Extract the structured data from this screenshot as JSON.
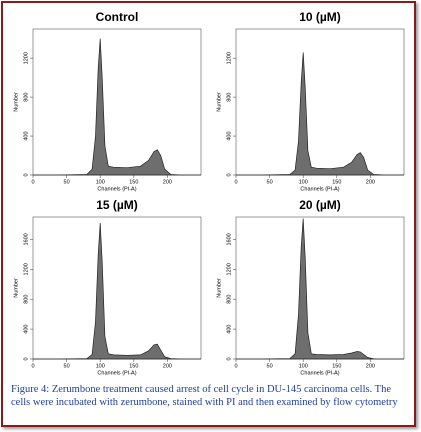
{
  "chart_data": [
    {
      "type": "area",
      "title": "Control",
      "xlabel": "Channels (PI-A)",
      "ylabel": "Number",
      "x": [
        0,
        40,
        80,
        88,
        93,
        97,
        100,
        103,
        107,
        112,
        120,
        140,
        160,
        172,
        180,
        185,
        190,
        196,
        205,
        220,
        250
      ],
      "values": [
        0,
        0,
        5,
        60,
        400,
        1100,
        1400,
        1000,
        300,
        90,
        80,
        75,
        90,
        150,
        240,
        260,
        200,
        60,
        5,
        0,
        0
      ],
      "color": "#6e6e6e",
      "xlim": [
        0,
        250
      ],
      "xticks": [
        0,
        50,
        100,
        150,
        200
      ],
      "ylim": [
        0,
        1500
      ],
      "yticks": [
        0,
        400,
        800,
        1200
      ]
    },
    {
      "type": "area",
      "title": "10 (µM)",
      "xlabel": "Channels (PI-A)",
      "ylabel": "Number",
      "x": [
        0,
        40,
        80,
        88,
        93,
        97,
        100,
        103,
        107,
        112,
        120,
        140,
        160,
        172,
        180,
        185,
        190,
        196,
        205,
        220,
        250
      ],
      "values": [
        0,
        0,
        5,
        50,
        350,
        950,
        1260,
        900,
        250,
        80,
        70,
        65,
        80,
        130,
        210,
        230,
        180,
        50,
        5,
        0,
        0
      ],
      "color": "#6e6e6e",
      "xlim": [
        0,
        250
      ],
      "xticks": [
        0,
        50,
        100,
        150,
        200
      ],
      "ylim": [
        0,
        1500
      ],
      "yticks": [
        0,
        400,
        800,
        1200
      ]
    },
    {
      "type": "area",
      "title": "15 (µM)",
      "xlabel": "Channels (PI-A)",
      "ylabel": "Number",
      "x": [
        0,
        40,
        80,
        88,
        93,
        97,
        100,
        103,
        107,
        112,
        120,
        140,
        160,
        172,
        180,
        185,
        190,
        196,
        205,
        220,
        250
      ],
      "values": [
        0,
        0,
        5,
        60,
        500,
        1400,
        1820,
        1300,
        300,
        70,
        55,
        50,
        55,
        110,
        190,
        200,
        120,
        30,
        5,
        0,
        0
      ],
      "color": "#6e6e6e",
      "xlim": [
        0,
        250
      ],
      "xticks": [
        0,
        50,
        100,
        150,
        200
      ],
      "ylim": [
        0,
        1900
      ],
      "yticks": [
        0,
        400,
        800,
        1200,
        1600
      ]
    },
    {
      "type": "area",
      "title": "20 (µM)",
      "xlabel": "Channels (PI-A)",
      "ylabel": "Number",
      "x": [
        0,
        40,
        80,
        88,
        93,
        97,
        100,
        103,
        107,
        112,
        120,
        140,
        160,
        172,
        180,
        185,
        190,
        196,
        205,
        220,
        250
      ],
      "values": [
        0,
        0,
        5,
        70,
        600,
        1500,
        1880,
        1350,
        350,
        70,
        60,
        55,
        60,
        80,
        100,
        95,
        60,
        20,
        3,
        0,
        0
      ],
      "color": "#6e6e6e",
      "xlim": [
        0,
        250
      ],
      "xticks": [
        0,
        50,
        100,
        150,
        200
      ],
      "ylim": [
        0,
        1900
      ],
      "yticks": [
        0,
        400,
        800,
        1200,
        1600
      ]
    }
  ],
  "caption": "Figure 4: Zerumbone treatment caused arrest of cell cycle in DU-145 carcinoma cells. The cells were incubated with zerumbone, stained with PI and then examined by flow cytometry"
}
